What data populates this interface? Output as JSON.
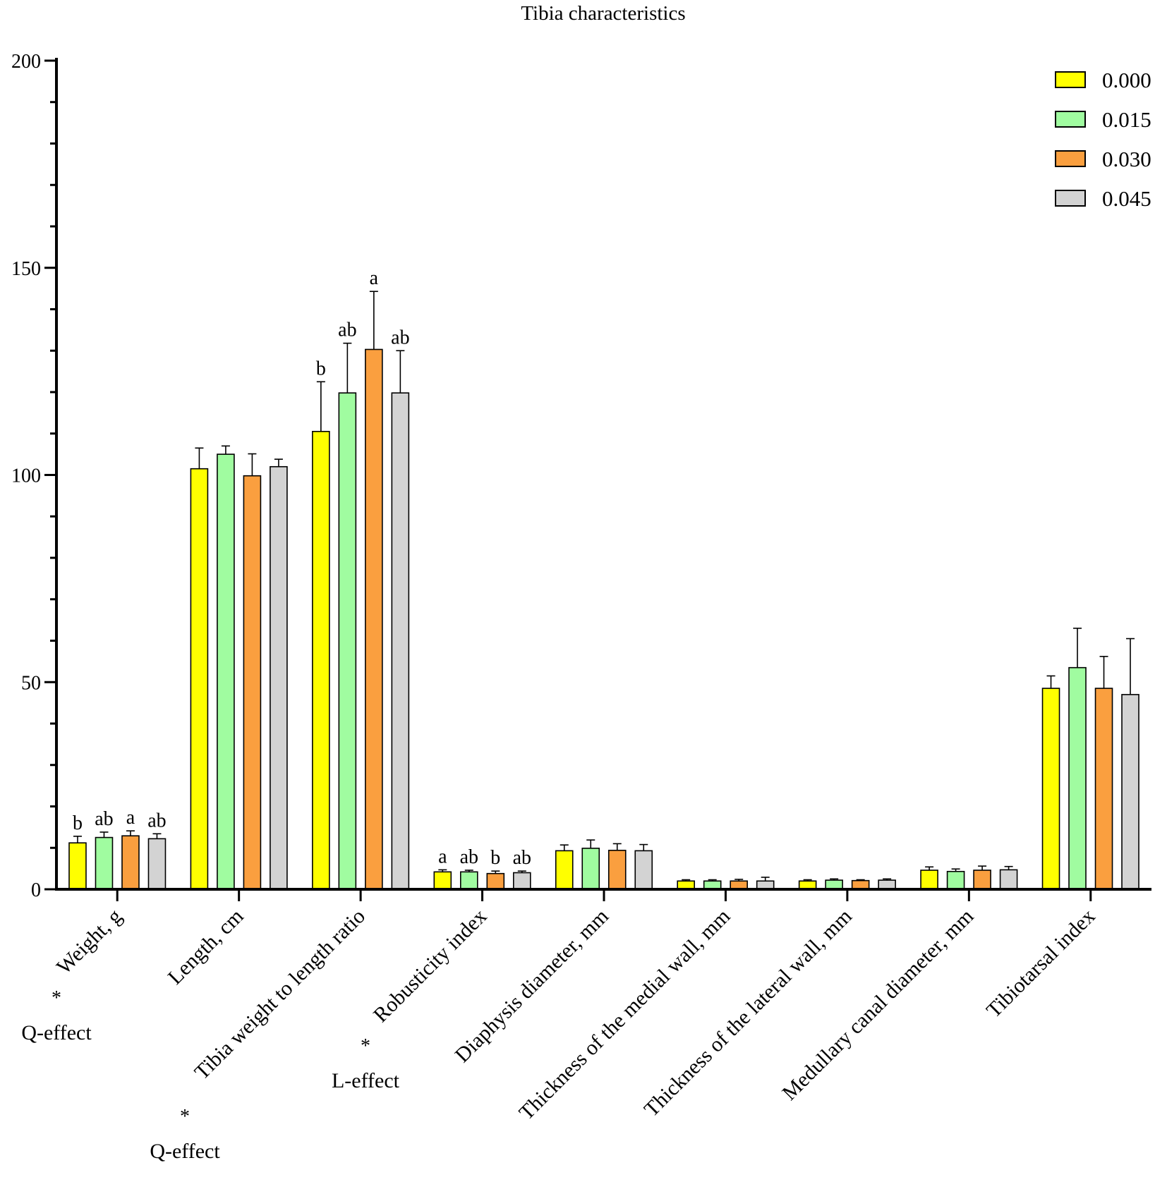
{
  "chart_data": {
    "type": "bar",
    "title": "Tibia characteristics",
    "xlabel": "",
    "ylabel": "",
    "ylim": [
      0,
      200
    ],
    "yticks": [
      0,
      50,
      100,
      150,
      200
    ],
    "grid": false,
    "legend_position": "top-right",
    "categories": [
      "Weight, g",
      "Length, cm",
      "Tibia weight to length ratio",
      "Robusticity index",
      "Diaphysis diameter, mm",
      "Thickness of the medial wall, mm",
      "Thickness of the lateral wall, mm",
      "Medullary canal diameter, mm",
      "Tibiotarsal index"
    ],
    "series": [
      {
        "name": "0.000",
        "color": "#ffff00",
        "values": [
          11.2,
          101.5,
          110.5,
          4.2,
          9.3,
          2.0,
          2.0,
          4.6,
          48.5
        ],
        "errors": [
          1.6,
          5.0,
          12.0,
          0.5,
          1.4,
          0.3,
          0.3,
          0.8,
          3.0
        ],
        "letters": [
          "b",
          "",
          "b",
          "a",
          "",
          "",
          "",
          "",
          ""
        ]
      },
      {
        "name": "0.015",
        "color": "#a0fca0",
        "values": [
          12.5,
          105.0,
          119.8,
          4.2,
          9.9,
          2.0,
          2.2,
          4.3,
          53.5
        ],
        "errors": [
          1.3,
          2.0,
          12.0,
          0.4,
          2.0,
          0.3,
          0.3,
          0.6,
          9.5
        ],
        "letters": [
          "ab",
          "",
          "ab",
          "ab",
          "",
          "",
          "",
          "",
          ""
        ]
      },
      {
        "name": "0.030",
        "color": "#fa9f3f",
        "values": [
          12.9,
          99.8,
          130.3,
          3.8,
          9.4,
          2.0,
          2.1,
          4.6,
          48.5
        ],
        "errors": [
          1.2,
          5.3,
          14.0,
          0.6,
          1.6,
          0.4,
          0.2,
          1.0,
          7.7
        ],
        "letters": [
          "a",
          "",
          "a",
          "b",
          "",
          "",
          "",
          "",
          ""
        ]
      },
      {
        "name": "0.045",
        "color": "#d3d3d3",
        "values": [
          12.2,
          102.0,
          119.8,
          4.0,
          9.3,
          2.0,
          2.2,
          4.7,
          47.0
        ],
        "errors": [
          1.2,
          1.8,
          10.2,
          0.4,
          1.5,
          0.9,
          0.3,
          0.8,
          13.5
        ],
        "letters": [
          "ab",
          "",
          "ab",
          "ab",
          "",
          "",
          "",
          "",
          ""
        ]
      }
    ],
    "annotations": [
      {
        "category_index": 0,
        "star": "*",
        "text": "Q-effect"
      },
      {
        "category_index": 2,
        "star": "*",
        "text": "Q-effect"
      },
      {
        "category_index": 3,
        "star": "*",
        "text": "L-effect"
      }
    ]
  }
}
